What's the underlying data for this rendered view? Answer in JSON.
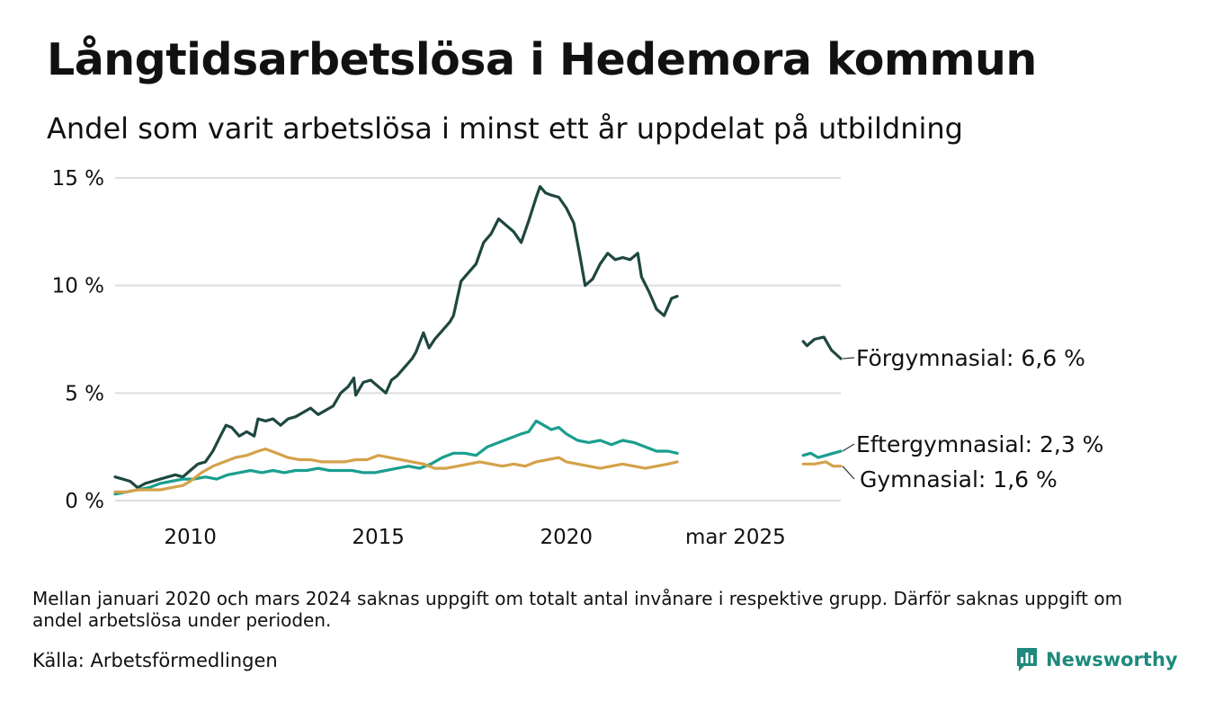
{
  "chart_data": {
    "type": "line",
    "title": "Långtidsarbetslösa i Hedemora kommun",
    "subtitle": "Andel som varit arbetslösa i minst ett år uppdelat på utbildning",
    "ylim": [
      0,
      15
    ],
    "y_ticks": [
      {
        "value": 0,
        "label": "0 %"
      },
      {
        "value": 5,
        "label": "5 %"
      },
      {
        "value": 10,
        "label": "10 %"
      },
      {
        "value": 15,
        "label": "15 %"
      }
    ],
    "x_ticks": [
      {
        "value": 2010.0,
        "label": "2010"
      },
      {
        "value": 2015.0,
        "label": "2015"
      },
      {
        "value": 2020.0,
        "label": "2020"
      },
      {
        "value": 2024.5,
        "label": "mar 2025"
      }
    ],
    "grid": true,
    "legend": "end-labels",
    "series": [
      {
        "name": "Förgymnasial",
        "end_label": "Förgymnasial: 6,6 %",
        "color": "#1e4740",
        "segments": [
          [
            [
              2008.0,
              1.1
            ],
            [
              2008.2,
              1.0
            ],
            [
              2008.4,
              0.9
            ],
            [
              2008.6,
              0.6
            ],
            [
              2008.8,
              0.8
            ],
            [
              2009.0,
              0.9
            ],
            [
              2009.2,
              1.0
            ],
            [
              2009.4,
              1.1
            ],
            [
              2009.6,
              1.2
            ],
            [
              2009.8,
              1.1
            ],
            [
              2010.0,
              1.4
            ],
            [
              2010.2,
              1.7
            ],
            [
              2010.4,
              1.8
            ],
            [
              2010.6,
              2.3
            ],
            [
              2010.8,
              3.0
            ],
            [
              2010.95,
              3.5
            ],
            [
              2011.1,
              3.4
            ],
            [
              2011.3,
              3.0
            ],
            [
              2011.5,
              3.2
            ],
            [
              2011.7,
              3.0
            ],
            [
              2011.8,
              3.8
            ],
            [
              2012.0,
              3.7
            ],
            [
              2012.2,
              3.8
            ],
            [
              2012.4,
              3.5
            ],
            [
              2012.6,
              3.8
            ],
            [
              2012.8,
              3.9
            ],
            [
              2013.0,
              4.1
            ],
            [
              2013.2,
              4.3
            ],
            [
              2013.4,
              4.0
            ],
            [
              2013.6,
              4.2
            ],
            [
              2013.8,
              4.4
            ],
            [
              2014.0,
              5.0
            ],
            [
              2014.2,
              5.3
            ],
            [
              2014.35,
              5.7
            ],
            [
              2014.4,
              4.9
            ],
            [
              2014.6,
              5.5
            ],
            [
              2014.8,
              5.6
            ],
            [
              2015.0,
              5.3
            ],
            [
              2015.2,
              5.0
            ],
            [
              2015.35,
              5.6
            ],
            [
              2015.5,
              5.8
            ],
            [
              2015.7,
              6.2
            ],
            [
              2015.9,
              6.6
            ],
            [
              2016.0,
              6.9
            ],
            [
              2016.2,
              7.8
            ],
            [
              2016.35,
              7.1
            ],
            [
              2016.5,
              7.5
            ],
            [
              2016.7,
              7.9
            ],
            [
              2016.9,
              8.3
            ],
            [
              2017.0,
              8.6
            ],
            [
              2017.2,
              10.2
            ],
            [
              2017.4,
              10.6
            ],
            [
              2017.6,
              11.0
            ],
            [
              2017.8,
              12.0
            ],
            [
              2018.0,
              12.4
            ],
            [
              2018.2,
              13.1
            ],
            [
              2018.4,
              12.8
            ],
            [
              2018.6,
              12.5
            ],
            [
              2018.8,
              12.0
            ],
            [
              2019.0,
              13.0
            ],
            [
              2019.2,
              14.1
            ],
            [
              2019.3,
              14.6
            ],
            [
              2019.45,
              14.3
            ],
            [
              2019.6,
              14.2
            ],
            [
              2019.8,
              14.1
            ],
            [
              2020.0,
              13.6
            ],
            [
              2020.2,
              12.9
            ],
            [
              2020.35,
              11.5
            ],
            [
              2020.5,
              10.0
            ],
            [
              2020.7,
              10.3
            ],
            [
              2020.9,
              11.0
            ],
            [
              2021.1,
              11.5
            ],
            [
              2021.3,
              11.2
            ],
            [
              2021.5,
              11.3
            ],
            [
              2021.7,
              11.2
            ],
            [
              2021.9,
              11.5
            ],
            [
              2022.0,
              10.4
            ],
            [
              2022.2,
              9.7
            ],
            [
              2022.4,
              8.9
            ],
            [
              2022.6,
              8.6
            ],
            [
              2022.8,
              9.4
            ],
            [
              2022.95,
              9.5
            ]
          ],
          [
            [
              2026.3,
              7.4
            ],
            [
              2026.4,
              7.2
            ],
            [
              2026.6,
              7.5
            ],
            [
              2026.85,
              7.6
            ],
            [
              2027.05,
              7.0
            ],
            [
              2027.3,
              6.6
            ]
          ]
        ]
      },
      {
        "name": "Eftergymnasial",
        "end_label": "Eftergymnasial: 2,3 %",
        "color": "#1a9e8f",
        "segments": [
          [
            [
              2008.0,
              0.3
            ],
            [
              2008.3,
              0.4
            ],
            [
              2008.6,
              0.5
            ],
            [
              2008.9,
              0.6
            ],
            [
              2009.2,
              0.8
            ],
            [
              2009.5,
              0.9
            ],
            [
              2009.8,
              1.0
            ],
            [
              2010.1,
              1.0
            ],
            [
              2010.4,
              1.1
            ],
            [
              2010.7,
              1.0
            ],
            [
              2011.0,
              1.2
            ],
            [
              2011.3,
              1.3
            ],
            [
              2011.6,
              1.4
            ],
            [
              2011.9,
              1.3
            ],
            [
              2012.2,
              1.4
            ],
            [
              2012.5,
              1.3
            ],
            [
              2012.8,
              1.4
            ],
            [
              2013.1,
              1.4
            ],
            [
              2013.4,
              1.5
            ],
            [
              2013.7,
              1.4
            ],
            [
              2014.0,
              1.4
            ],
            [
              2014.3,
              1.4
            ],
            [
              2014.6,
              1.3
            ],
            [
              2014.9,
              1.3
            ],
            [
              2015.2,
              1.4
            ],
            [
              2015.5,
              1.5
            ],
            [
              2015.8,
              1.6
            ],
            [
              2016.1,
              1.5
            ],
            [
              2016.4,
              1.7
            ],
            [
              2016.7,
              2.0
            ],
            [
              2017.0,
              2.2
            ],
            [
              2017.3,
              2.2
            ],
            [
              2017.6,
              2.1
            ],
            [
              2017.9,
              2.5
            ],
            [
              2018.2,
              2.7
            ],
            [
              2018.5,
              2.9
            ],
            [
              2018.8,
              3.1
            ],
            [
              2019.0,
              3.2
            ],
            [
              2019.2,
              3.7
            ],
            [
              2019.4,
              3.5
            ],
            [
              2019.6,
              3.3
            ],
            [
              2019.8,
              3.4
            ],
            [
              2020.0,
              3.1
            ],
            [
              2020.3,
              2.8
            ],
            [
              2020.6,
              2.7
            ],
            [
              2020.9,
              2.8
            ],
            [
              2021.2,
              2.6
            ],
            [
              2021.5,
              2.8
            ],
            [
              2021.8,
              2.7
            ],
            [
              2022.1,
              2.5
            ],
            [
              2022.4,
              2.3
            ],
            [
              2022.7,
              2.3
            ],
            [
              2022.95,
              2.2
            ]
          ],
          [
            [
              2026.3,
              2.1
            ],
            [
              2026.5,
              2.2
            ],
            [
              2026.7,
              2.0
            ],
            [
              2026.9,
              2.1
            ],
            [
              2027.1,
              2.2
            ],
            [
              2027.3,
              2.3
            ]
          ]
        ]
      },
      {
        "name": "Gymnasial",
        "end_label": "Gymnasial: 1,6 %",
        "color": "#d4a24a",
        "segments": [
          [
            [
              2008.0,
              0.4
            ],
            [
              2008.3,
              0.4
            ],
            [
              2008.6,
              0.5
            ],
            [
              2008.9,
              0.5
            ],
            [
              2009.2,
              0.5
            ],
            [
              2009.5,
              0.6
            ],
            [
              2009.8,
              0.7
            ],
            [
              2010.0,
              0.9
            ],
            [
              2010.3,
              1.3
            ],
            [
              2010.6,
              1.6
            ],
            [
              2010.9,
              1.8
            ],
            [
              2011.2,
              2.0
            ],
            [
              2011.5,
              2.1
            ],
            [
              2011.8,
              2.3
            ],
            [
              2012.0,
              2.4
            ],
            [
              2012.3,
              2.2
            ],
            [
              2012.6,
              2.0
            ],
            [
              2012.9,
              1.9
            ],
            [
              2013.2,
              1.9
            ],
            [
              2013.5,
              1.8
            ],
            [
              2013.8,
              1.8
            ],
            [
              2014.1,
              1.8
            ],
            [
              2014.4,
              1.9
            ],
            [
              2014.7,
              1.9
            ],
            [
              2015.0,
              2.1
            ],
            [
              2015.3,
              2.0
            ],
            [
              2015.6,
              1.9
            ],
            [
              2015.9,
              1.8
            ],
            [
              2016.2,
              1.7
            ],
            [
              2016.5,
              1.5
            ],
            [
              2016.8,
              1.5
            ],
            [
              2017.1,
              1.6
            ],
            [
              2017.4,
              1.7
            ],
            [
              2017.7,
              1.8
            ],
            [
              2018.0,
              1.7
            ],
            [
              2018.3,
              1.6
            ],
            [
              2018.6,
              1.7
            ],
            [
              2018.9,
              1.6
            ],
            [
              2019.2,
              1.8
            ],
            [
              2019.5,
              1.9
            ],
            [
              2019.8,
              2.0
            ],
            [
              2020.0,
              1.8
            ],
            [
              2020.3,
              1.7
            ],
            [
              2020.6,
              1.6
            ],
            [
              2020.9,
              1.5
            ],
            [
              2021.2,
              1.6
            ],
            [
              2021.5,
              1.7
            ],
            [
              2021.8,
              1.6
            ],
            [
              2022.1,
              1.5
            ],
            [
              2022.4,
              1.6
            ],
            [
              2022.7,
              1.7
            ],
            [
              2022.95,
              1.8
            ]
          ],
          [
            [
              2026.3,
              1.7
            ],
            [
              2026.6,
              1.7
            ],
            [
              2026.9,
              1.8
            ],
            [
              2027.1,
              1.6
            ],
            [
              2027.3,
              1.6
            ]
          ]
        ]
      }
    ]
  },
  "footnote": "Mellan januari 2020 och mars 2024 saknas uppgift om totalt antal invånare i respektive grupp. Därför saknas uppgift om andel arbetslösa under perioden.",
  "source": "Källa: Arbetsförmedlingen",
  "brand": {
    "name": "Newsworthy",
    "icon": "bar-chart-logo-icon",
    "color": "#1e8a7d"
  }
}
